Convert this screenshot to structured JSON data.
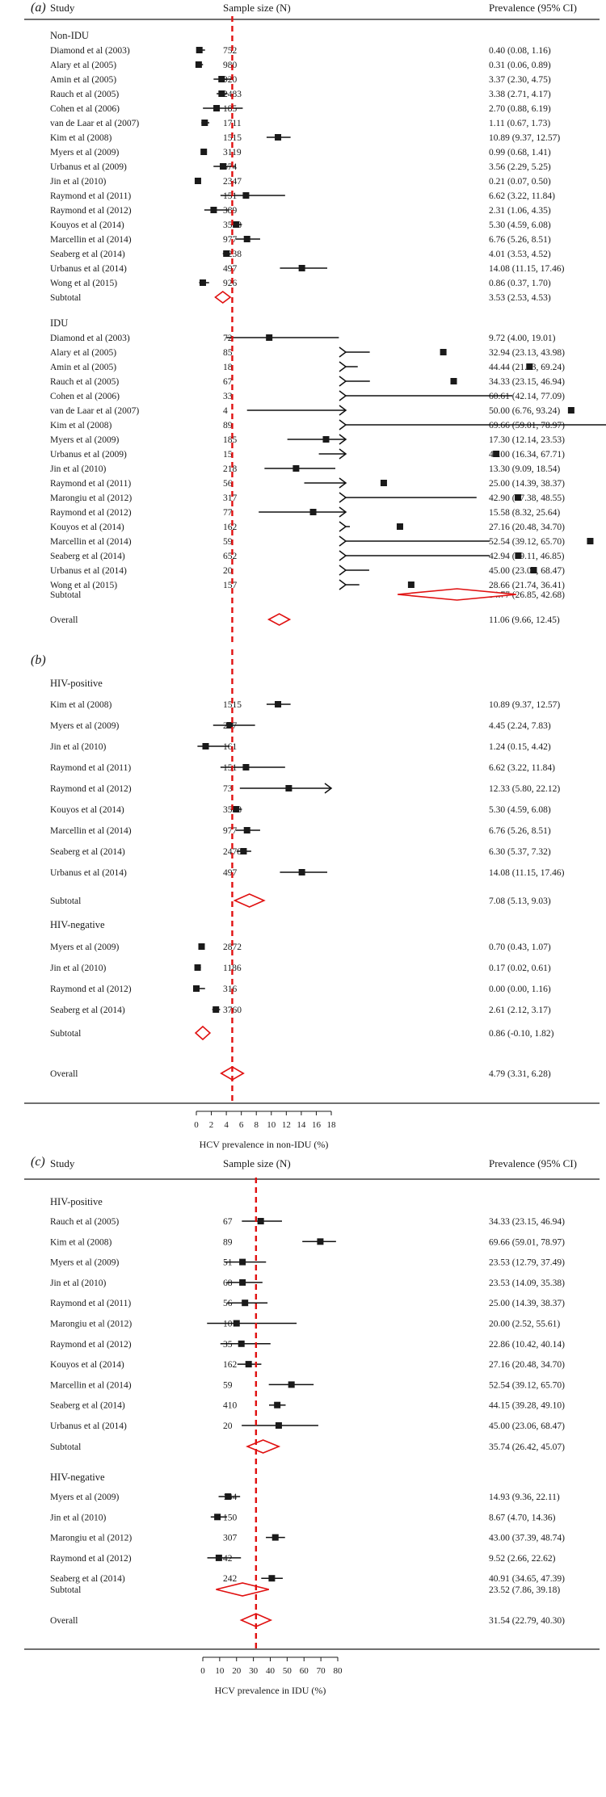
{
  "chart_data": [
    {
      "panel": "(a)",
      "type": "forest",
      "columns": {
        "study": "Study",
        "n": "Sample size (N)",
        "prev": "Prevalence (95% CI)"
      },
      "xlabel": "",
      "xlim": [
        0,
        18
      ],
      "overall_line": 4.79,
      "groups": [
        {
          "name": "Non-IDU",
          "rows": [
            {
              "study": "Diamond et al (2003)",
              "n": "752",
              "est": 0.4,
              "lo": 0.08,
              "hi": 1.16,
              "label": "0.40 (0.08, 1.16)"
            },
            {
              "study": "Alary et al (2005)",
              "n": "980",
              "est": 0.31,
              "lo": 0.06,
              "hi": 0.89,
              "label": "0.31 (0.06, 0.89)"
            },
            {
              "study": "Amin et al (2005)",
              "n": "920",
              "est": 3.37,
              "lo": 2.3,
              "hi": 4.75,
              "label": "3.37 (2.30, 4.75)"
            },
            {
              "study": "Rauch et al (2005)",
              "n": "2483",
              "est": 3.38,
              "lo": 2.71,
              "hi": 4.17,
              "label": "3.38 (2.71, 4.17)"
            },
            {
              "study": "Cohen et al (2006)",
              "n": "185",
              "est": 2.7,
              "lo": 0.88,
              "hi": 6.19,
              "label": "2.70 (0.88, 6.19)"
            },
            {
              "study": "van de Laar et al (2007)",
              "n": "1711",
              "est": 1.11,
              "lo": 0.67,
              "hi": 1.73,
              "label": "1.11 (0.67, 1.73)"
            },
            {
              "study": "Kim et al (2008)",
              "n": "1515",
              "est": 10.89,
              "lo": 9.37,
              "hi": 12.57,
              "label": "10.89 (9.37, 12.57)"
            },
            {
              "study": "Myers et al (2009)",
              "n": "3119",
              "est": 0.99,
              "lo": 0.68,
              "hi": 1.41,
              "label": "0.99 (0.68, 1.41)"
            },
            {
              "study": "Urbanus et al (2009)",
              "n": "674",
              "est": 3.56,
              "lo": 2.29,
              "hi": 5.25,
              "label": "3.56 (2.29, 5.25)"
            },
            {
              "study": "Jin et al (2010)",
              "n": "2347",
              "est": 0.21,
              "lo": 0.07,
              "hi": 0.5,
              "label": "0.21 (0.07, 0.50)"
            },
            {
              "study": "Raymond et al (2011)",
              "n": "151",
              "est": 6.62,
              "lo": 3.22,
              "hi": 11.84,
              "label": "6.62 (3.22, 11.84)"
            },
            {
              "study": "Raymond et al (2012)",
              "n": "389",
              "est": 2.31,
              "lo": 1.06,
              "hi": 4.35,
              "label": "2.31 (1.06, 4.35)"
            },
            {
              "study": "Kouyos et al (2014)",
              "n": "3568",
              "est": 5.3,
              "lo": 4.59,
              "hi": 6.08,
              "label": "5.30 (4.59, 6.08)"
            },
            {
              "study": "Marcellin et al (2014)",
              "n": "977",
              "est": 6.76,
              "lo": 5.26,
              "hi": 8.51,
              "label": "6.76 (5.26, 8.51)"
            },
            {
              "study": "Seaberg et al (2014)",
              "n": "6238",
              "est": 4.01,
              "lo": 3.53,
              "hi": 4.52,
              "label": "4.01 (3.53, 4.52)"
            },
            {
              "study": "Urbanus et al (2014)",
              "n": "497",
              "est": 14.08,
              "lo": 11.15,
              "hi": 17.46,
              "label": "14.08 (11.15, 17.46)"
            },
            {
              "study": "Wong et al (2015)",
              "n": "926",
              "est": 0.86,
              "lo": 0.37,
              "hi": 1.7,
              "label": "0.86 (0.37, 1.70)"
            }
          ],
          "subtotal": {
            "label": "Subtotal",
            "est": 3.53,
            "lo": 2.53,
            "hi": 4.53,
            "text": "3.53 (2.53, 4.53)"
          }
        },
        {
          "name": "IDU",
          "rows": [
            {
              "study": "Diamond et al (2003)",
              "n": "72",
              "est": 9.72,
              "lo": 4.0,
              "hi": 19.01,
              "label": "9.72 (4.00, 19.01)"
            },
            {
              "study": "Alary et al (2005)",
              "n": "85",
              "est": 32.94,
              "lo": 23.13,
              "hi": 43.98,
              "label": "32.94 (23.13, 43.98)"
            },
            {
              "study": "Amin et al (2005)",
              "n": "18",
              "est": 44.44,
              "lo": 21.53,
              "hi": 69.24,
              "label": "44.44 (21.53, 69.24)"
            },
            {
              "study": "Rauch et al (2005)",
              "n": "67",
              "est": 34.33,
              "lo": 23.15,
              "hi": 46.94,
              "label": "34.33 (23.15, 46.94)"
            },
            {
              "study": "Cohen et al (2006)",
              "n": "33",
              "est": 60.61,
              "lo": 42.14,
              "hi": 77.09,
              "label": "60.61 (42.14, 77.09)"
            },
            {
              "study": "van de Laar et al (2007)",
              "n": "4",
              "est": 50.0,
              "lo": 6.76,
              "hi": 93.24,
              "label": "50.00 (6.76, 93.24)"
            },
            {
              "study": "Kim et al (2008)",
              "n": "89",
              "est": 69.66,
              "lo": 59.01,
              "hi": 78.97,
              "label": "69.66 (59.01, 78.97)"
            },
            {
              "study": "Myers et al (2009)",
              "n": "185",
              "est": 17.3,
              "lo": 12.14,
              "hi": 23.53,
              "label": "17.30 (12.14, 23.53)"
            },
            {
              "study": "Urbanus et al (2009)",
              "n": "15",
              "est": 40.0,
              "lo": 16.34,
              "hi": 67.71,
              "label": "40.00 (16.34, 67.71)"
            },
            {
              "study": "Jin et al (2010)",
              "n": "218",
              "est": 13.3,
              "lo": 9.09,
              "hi": 18.54,
              "label": "13.30 (9.09, 18.54)"
            },
            {
              "study": "Raymond et al (2011)",
              "n": "56",
              "est": 25.0,
              "lo": 14.39,
              "hi": 38.37,
              "label": "25.00 (14.39, 38.37)"
            },
            {
              "study": "Marongiu et al (2012)",
              "n": "317",
              "est": 42.9,
              "lo": 37.38,
              "hi": 48.55,
              "label": "42.90 (37.38, 48.55)"
            },
            {
              "study": "Raymond et al (2012)",
              "n": "77",
              "est": 15.58,
              "lo": 8.32,
              "hi": 25.64,
              "label": "15.58 (8.32, 25.64)"
            },
            {
              "study": "Kouyos et al (2014)",
              "n": "162",
              "est": 27.16,
              "lo": 20.48,
              "hi": 34.7,
              "label": "27.16 (20.48, 34.70)"
            },
            {
              "study": "Marcellin et al (2014)",
              "n": "59",
              "est": 52.54,
              "lo": 39.12,
              "hi": 65.7,
              "label": "52.54 (39.12, 65.70)"
            },
            {
              "study": "Seaberg et al (2014)",
              "n": "652",
              "est": 42.94,
              "lo": 39.11,
              "hi": 46.85,
              "label": "42.94 (39.11, 46.85)"
            },
            {
              "study": "Urbanus et al (2014)",
              "n": "20",
              "est": 45.0,
              "lo": 23.06,
              "hi": 68.47,
              "label": "45.00 (23.06, 68.47)"
            },
            {
              "study": "Wong et al (2015)",
              "n": "157",
              "est": 28.66,
              "lo": 21.74,
              "hi": 36.41,
              "label": "28.66 (21.74, 36.41)"
            }
          ],
          "subtotal": {
            "label": "Subtotal",
            "est": 34.77,
            "lo": 26.85,
            "hi": 42.68,
            "text": "34.77 (26.85, 42.68)"
          }
        }
      ],
      "overall": {
        "label": "Overall",
        "est": 11.06,
        "lo": 9.66,
        "hi": 12.45,
        "text": "11.06 (9.66, 12.45)"
      }
    },
    {
      "panel": "(b)",
      "type": "forest",
      "xlabel": "HCV prevalence in non-IDU (%)",
      "xlim": [
        0,
        18
      ],
      "xticks": [
        0,
        2,
        4,
        6,
        8,
        10,
        12,
        14,
        16,
        18
      ],
      "overall_line": 4.79,
      "groups": [
        {
          "name": "HIV-positive",
          "rows": [
            {
              "study": "Kim et al (2008)",
              "n": "1515",
              "est": 10.89,
              "lo": 9.37,
              "hi": 12.57,
              "label": "10.89 (9.37, 12.57)"
            },
            {
              "study": "Myers et al (2009)",
              "n": "247",
              "est": 4.45,
              "lo": 2.24,
              "hi": 7.83,
              "label": "4.45 (2.24, 7.83)"
            },
            {
              "study": "Jin et al (2010)",
              "n": "161",
              "est": 1.24,
              "lo": 0.15,
              "hi": 4.42,
              "label": "1.24 (0.15, 4.42)"
            },
            {
              "study": "Raymond et al (2011)",
              "n": "151",
              "est": 6.62,
              "lo": 3.22,
              "hi": 11.84,
              "label": "6.62 (3.22, 11.84)"
            },
            {
              "study": "Raymond et al (2012)",
              "n": "73",
              "est": 12.33,
              "lo": 5.8,
              "hi": 22.12,
              "label": "12.33 (5.80, 22.12)"
            },
            {
              "study": "Kouyos et al (2014)",
              "n": "3568",
              "est": 5.3,
              "lo": 4.59,
              "hi": 6.08,
              "label": "5.30 (4.59, 6.08)"
            },
            {
              "study": "Marcellin et al (2014)",
              "n": "977",
              "est": 6.76,
              "lo": 5.26,
              "hi": 8.51,
              "label": "6.76 (5.26, 8.51)"
            },
            {
              "study": "Seaberg et al (2014)",
              "n": "2478",
              "est": 6.3,
              "lo": 5.37,
              "hi": 7.32,
              "label": "6.30 (5.37, 7.32)"
            },
            {
              "study": "Urbanus et al (2014)",
              "n": "497",
              "est": 14.08,
              "lo": 11.15,
              "hi": 17.46,
              "label": "14.08 (11.15, 17.46)"
            }
          ],
          "subtotal": {
            "label": "Subtotal",
            "est": 7.08,
            "lo": 5.13,
            "hi": 9.03,
            "text": "7.08 (5.13, 9.03)"
          }
        },
        {
          "name": "HIV-negative",
          "rows": [
            {
              "study": "Myers et al (2009)",
              "n": "2872",
              "est": 0.7,
              "lo": 0.43,
              "hi": 1.07,
              "label": "0.70 (0.43, 1.07)"
            },
            {
              "study": "Jin et al (2010)",
              "n": "1186",
              "est": 0.17,
              "lo": 0.02,
              "hi": 0.61,
              "label": "0.17 (0.02, 0.61)"
            },
            {
              "study": "Raymond et al (2012)",
              "n": "316",
              "est": 0.0,
              "lo": 0.0,
              "hi": 1.16,
              "label": "0.00 (0.00, 1.16)"
            },
            {
              "study": "Seaberg et al (2014)",
              "n": "3760",
              "est": 2.61,
              "lo": 2.12,
              "hi": 3.17,
              "label": "2.61 (2.12, 3.17)"
            }
          ],
          "subtotal": {
            "label": "Subtotal",
            "est": 0.86,
            "lo": -0.1,
            "hi": 1.82,
            "text": "0.86 (-0.10, 1.82)"
          }
        }
      ],
      "overall": {
        "label": "Overall",
        "est": 4.79,
        "lo": 3.31,
        "hi": 6.28,
        "text": "4.79 (3.31, 6.28)"
      }
    },
    {
      "panel": "(c)",
      "type": "forest",
      "columns": {
        "study": "Study",
        "n": "Sample size (N)",
        "prev": "Prevalence (95% CI)"
      },
      "xlabel": "HCV prevalence in IDU (%)",
      "xlim": [
        0,
        80
      ],
      "xticks": [
        0,
        10,
        20,
        30,
        40,
        50,
        60,
        70,
        80
      ],
      "overall_line": 31.54,
      "groups": [
        {
          "name": "HIV-positive",
          "rows": [
            {
              "study": "Rauch et al (2005)",
              "n": "67",
              "est": 34.33,
              "lo": 23.15,
              "hi": 46.94,
              "label": "34.33 (23.15, 46.94)"
            },
            {
              "study": "Kim et al (2008)",
              "n": "89",
              "est": 69.66,
              "lo": 59.01,
              "hi": 78.97,
              "label": "69.66 (59.01, 78.97)"
            },
            {
              "study": "Myers et al (2009)",
              "n": "51",
              "est": 23.53,
              "lo": 12.79,
              "hi": 37.49,
              "label": "23.53 (12.79, 37.49)"
            },
            {
              "study": "Jin et al (2010)",
              "n": "68",
              "est": 23.53,
              "lo": 14.09,
              "hi": 35.38,
              "label": "23.53 (14.09, 35.38)"
            },
            {
              "study": "Raymond et al (2011)",
              "n": "56",
              "est": 25.0,
              "lo": 14.39,
              "hi": 38.37,
              "label": "25.00 (14.39, 38.37)"
            },
            {
              "study": "Marongiu et al (2012)",
              "n": "10",
              "est": 20.0,
              "lo": 2.52,
              "hi": 55.61,
              "label": "20.00 (2.52, 55.61)"
            },
            {
              "study": "Raymond et al (2012)",
              "n": "35",
              "est": 22.86,
              "lo": 10.42,
              "hi": 40.14,
              "label": "22.86 (10.42, 40.14)"
            },
            {
              "study": "Kouyos et al (2014)",
              "n": "162",
              "est": 27.16,
              "lo": 20.48,
              "hi": 34.7,
              "label": "27.16 (20.48, 34.70)"
            },
            {
              "study": "Marcellin et al (2014)",
              "n": "59",
              "est": 52.54,
              "lo": 39.12,
              "hi": 65.7,
              "label": "52.54 (39.12, 65.70)"
            },
            {
              "study": "Seaberg et al (2014)",
              "n": "410",
              "est": 44.15,
              "lo": 39.28,
              "hi": 49.1,
              "label": "44.15 (39.28, 49.10)"
            },
            {
              "study": "Urbanus et al (2014)",
              "n": "20",
              "est": 45.0,
              "lo": 23.06,
              "hi": 68.47,
              "label": "45.00 (23.06, 68.47)"
            }
          ],
          "subtotal": {
            "label": "Subtotal",
            "est": 35.74,
            "lo": 26.42,
            "hi": 45.07,
            "text": "35.74 (26.42, 45.07)"
          }
        },
        {
          "name": "HIV-negative",
          "rows": [
            {
              "study": "Myers et al (2009)",
              "n": "134",
              "est": 14.93,
              "lo": 9.36,
              "hi": 22.11,
              "label": "14.93 (9.36, 22.11)"
            },
            {
              "study": "Jin et al (2010)",
              "n": "150",
              "est": 8.67,
              "lo": 4.7,
              "hi": 14.36,
              "label": "8.67 (4.70, 14.36)"
            },
            {
              "study": "Marongiu et al (2012)",
              "n": "307",
              "est": 43.0,
              "lo": 37.39,
              "hi": 48.74,
              "label": "43.00 (37.39, 48.74)"
            },
            {
              "study": "Raymond et al (2012)",
              "n": "42",
              "est": 9.52,
              "lo": 2.66,
              "hi": 22.62,
              "label": "9.52 (2.66, 22.62)"
            },
            {
              "study": "Seaberg et al (2014)",
              "n": "242",
              "est": 40.91,
              "lo": 34.65,
              "hi": 47.39,
              "label": "40.91 (34.65, 47.39)"
            }
          ],
          "subtotal": {
            "label": "Subtotal",
            "est": 23.52,
            "lo": 7.86,
            "hi": 39.18,
            "text": "23.52 (7.86, 39.18)"
          }
        }
      ],
      "overall": {
        "label": "Overall",
        "est": 31.54,
        "lo": 22.79,
        "hi": 40.3,
        "text": "31.54 (22.79, 40.30)"
      }
    }
  ]
}
